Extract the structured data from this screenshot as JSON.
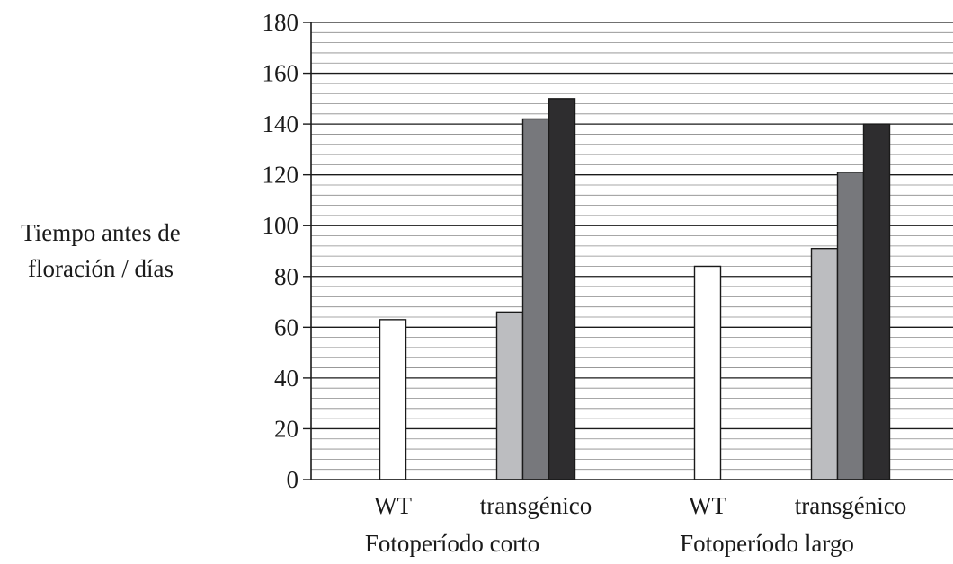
{
  "chart_data": {
    "type": "bar",
    "ylabel_lines": [
      "Tiempo antes de",
      "floración / días"
    ],
    "ylim": [
      0,
      180
    ],
    "yticks": [
      0,
      20,
      40,
      60,
      80,
      100,
      120,
      140,
      160,
      180
    ],
    "grid": {
      "major_step": 20,
      "minor_step": 4
    },
    "groups": [
      {
        "label": "Fotoperíodo corto",
        "subgroups": [
          {
            "label": "WT",
            "values": [
              63
            ],
            "colors": [
              "#ffffff"
            ]
          },
          {
            "label": "transgénico",
            "values": [
              66,
              142,
              150
            ],
            "colors": [
              "#bcbdc0",
              "#77787c",
              "#2e2d2f"
            ]
          }
        ]
      },
      {
        "label": "Fotoperíodo largo",
        "subgroups": [
          {
            "label": "WT",
            "values": [
              84
            ],
            "colors": [
              "#ffffff"
            ]
          },
          {
            "label": "transgénico",
            "values": [
              91,
              121,
              140
            ],
            "colors": [
              "#bcbdc0",
              "#77787c",
              "#2e2d2f"
            ]
          }
        ]
      }
    ]
  },
  "colors": {
    "axis": "#1a1a1a",
    "grid_major": "#1a1a1a",
    "grid_minor": "#8a8a8a",
    "bar_stroke": "#1a1a1a"
  }
}
